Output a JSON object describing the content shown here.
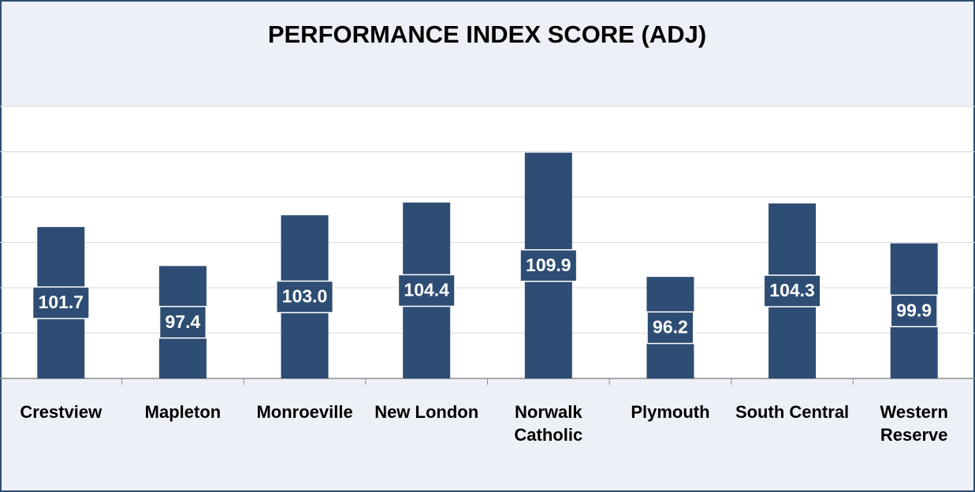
{
  "chart_data": {
    "type": "bar",
    "title": "PERFORMANCE INDEX SCORE (ADJ)",
    "categories": [
      "Crestview",
      "Mapleton",
      "Monroeville",
      "New London",
      "Norwalk Catholic",
      "Plymouth",
      "South Central",
      "Western Reserve"
    ],
    "values": [
      101.7,
      97.4,
      103.0,
      104.4,
      109.9,
      96.2,
      104.3,
      99.9
    ],
    "value_labels": [
      "101.7",
      "97.4",
      "103.0",
      "104.4",
      "109.9",
      "96.2",
      "104.3",
      "99.9"
    ],
    "color": "#2e4d74",
    "ylim": [
      85,
      115
    ],
    "yticks": [
      85,
      90,
      95,
      100,
      105,
      110,
      115
    ],
    "grid": true
  }
}
